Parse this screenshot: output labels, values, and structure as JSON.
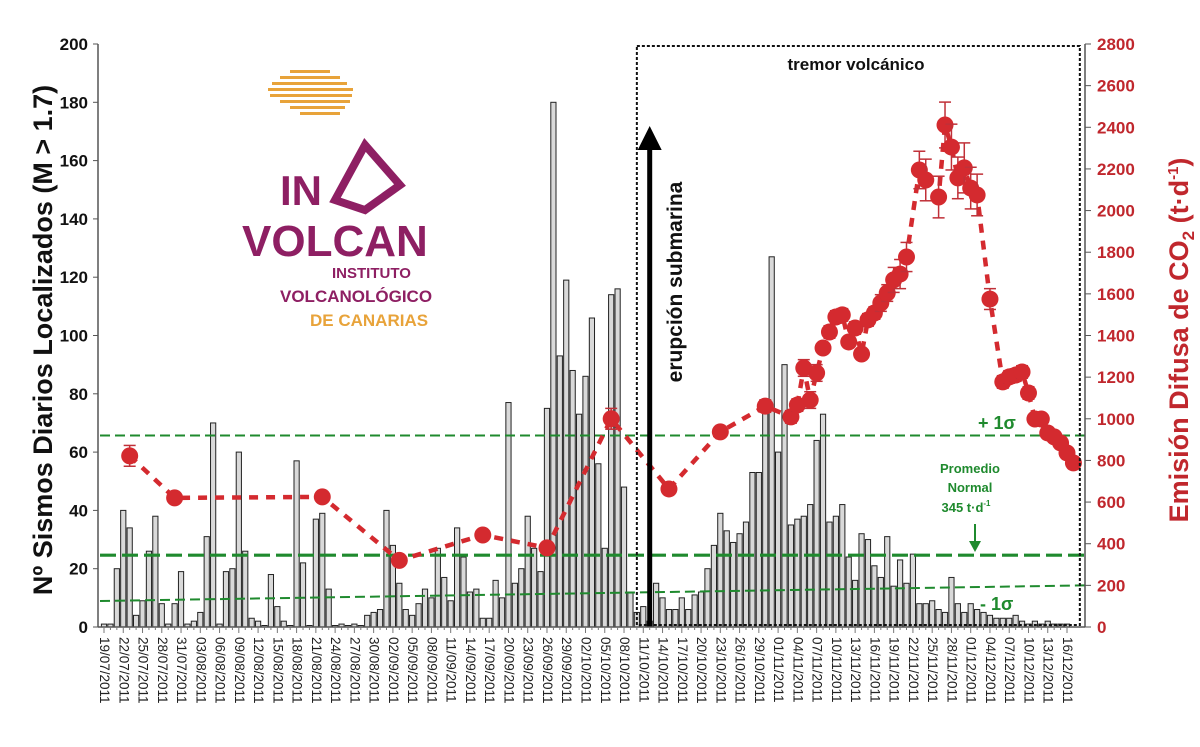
{
  "chart_data": {
    "type": "bar+scatter",
    "title": "",
    "ylabel_left": "Nº Sismos Diarios Localizados (M > 1.7)",
    "ylabel_right": "Emisión Difusa de CO2 (t·d-1)",
    "ylabel_right_parts": {
      "main": "Emisión Difusa de CO",
      "sub": "2",
      "unit": " (t·d",
      "sup": "-1",
      "close": ")"
    },
    "ylim_left": [
      0,
      200
    ],
    "ylim_right": [
      0,
      2800
    ],
    "yticks_left": [
      "0",
      "20",
      "40",
      "60",
      "80",
      "100",
      "120",
      "140",
      "160",
      "180",
      "200"
    ],
    "yticks_right": [
      "0",
      "200",
      "400",
      "600",
      "800",
      "1000",
      "1200",
      "1400",
      "1600",
      "1800",
      "2000",
      "2200",
      "2400",
      "2600",
      "2800"
    ],
    "x_start": "19/07/2011",
    "x_tick_labels": [
      "19/07/2011",
      "22/07/2011",
      "25/07/2011",
      "28/07/2011",
      "31/07/2011",
      "03/08/2011",
      "06/08/2011",
      "09/08/2011",
      "12/08/2011",
      "15/08/2011",
      "18/08/2011",
      "21/08/2011",
      "24/08/2011",
      "27/08/2011",
      "30/08/2011",
      "02/09/2011",
      "05/09/2011",
      "08/09/2011",
      "11/09/2011",
      "14/09/2011",
      "17/09/2011",
      "20/09/2011",
      "23/09/2011",
      "26/09/2011",
      "29/09/2011",
      "02/10/2011",
      "05/10/2011",
      "08/10/2011",
      "11/10/2011",
      "14/10/2011",
      "17/10/2011",
      "20/10/2011",
      "23/10/2011",
      "26/10/2011",
      "29/10/2011",
      "01/11/2011",
      "04/11/2011",
      "07/11/2011",
      "10/11/2011",
      "13/11/2011",
      "16/11/2011",
      "19/11/2011",
      "22/11/2011",
      "25/11/2011",
      "28/11/2011",
      "01/12/2011",
      "04/12/2011",
      "07/12/2011",
      "10/12/2011",
      "13/12/2011",
      "16/12/2011"
    ],
    "x_tick_step_days": 3,
    "daily_earthquakes": [
      1,
      1,
      20,
      40,
      34,
      4,
      9,
      26,
      38,
      8,
      1,
      8,
      19,
      1,
      2,
      5,
      31,
      70,
      1,
      19,
      20,
      60,
      26,
      3,
      2,
      0,
      18,
      7,
      2,
      0,
      57,
      22,
      0,
      37,
      39,
      13,
      0,
      1,
      0,
      1,
      0,
      4,
      5,
      6,
      40,
      28,
      15,
      6,
      4,
      8,
      13,
      10,
      27,
      17,
      9,
      34,
      24,
      12,
      13,
      3,
      3,
      16,
      10,
      77,
      15,
      20,
      38,
      27,
      19,
      75,
      180,
      93,
      119,
      88,
      73,
      86,
      106,
      56,
      27,
      114,
      116,
      48,
      12,
      5,
      7,
      2,
      15,
      10,
      6,
      6,
      10,
      6,
      11,
      12,
      20,
      28,
      39,
      33,
      29,
      32,
      36,
      53,
      53,
      76,
      127,
      60,
      90,
      35,
      37,
      38,
      42,
      64,
      73,
      36,
      38,
      42,
      24,
      16,
      32,
      30,
      21,
      17,
      31,
      14,
      23,
      15,
      25,
      8,
      8,
      9,
      6,
      5,
      17,
      8,
      5,
      8,
      6,
      5,
      4,
      3,
      3,
      3,
      4,
      2,
      1,
      2,
      1,
      2,
      1,
      1,
      1
    ],
    "co2_points_day_value_err": [
      [
        4,
        822,
        50
      ],
      [
        11,
        620,
        20
      ],
      [
        34,
        625,
        20
      ],
      [
        46,
        320,
        20
      ],
      [
        59,
        442,
        20
      ],
      [
        69,
        380,
        20
      ],
      [
        79,
        1000,
        50
      ],
      [
        88,
        663,
        20
      ],
      [
        96,
        937,
        20
      ],
      [
        103,
        1061,
        30
      ],
      [
        107,
        1009,
        30
      ],
      [
        108,
        1066,
        30
      ],
      [
        109,
        1244,
        40
      ],
      [
        110,
        1090,
        40
      ],
      [
        111,
        1220,
        40
      ],
      [
        112,
        1340,
        20
      ],
      [
        113,
        1417,
        30
      ],
      [
        114,
        1489,
        30
      ],
      [
        115,
        1499,
        30
      ],
      [
        116,
        1369,
        20
      ],
      [
        117,
        1436,
        30
      ],
      [
        118,
        1311,
        20
      ],
      [
        119,
        1475,
        30
      ],
      [
        120,
        1508,
        30
      ],
      [
        121,
        1556,
        40
      ],
      [
        122,
        1604,
        40
      ],
      [
        123,
        1667,
        60
      ],
      [
        124,
        1695,
        70
      ],
      [
        125,
        1777,
        70
      ],
      [
        127,
        2195,
        90
      ],
      [
        128,
        2147,
        100
      ],
      [
        130,
        2065,
        100
      ],
      [
        131,
        2411,
        110
      ],
      [
        132,
        2305,
        110
      ],
      [
        133,
        2157,
        100
      ],
      [
        134,
        2205,
        120
      ],
      [
        135,
        2108,
        100
      ],
      [
        136,
        2075,
        100
      ],
      [
        138,
        1575,
        50
      ],
      [
        140,
        1177,
        30
      ],
      [
        141,
        1201,
        30
      ],
      [
        142,
        1210,
        30
      ],
      [
        143,
        1225,
        30
      ],
      [
        144,
        1124,
        30
      ],
      [
        145,
        999,
        20
      ],
      [
        146,
        999,
        20
      ],
      [
        147,
        932,
        20
      ],
      [
        148,
        913,
        20
      ],
      [
        149,
        884,
        20
      ],
      [
        150,
        836,
        20
      ],
      [
        151,
        788,
        20
      ]
    ],
    "reference_lines": {
      "plus_1sigma_co2": 920,
      "mean_co2": 345,
      "minus_1sigma_co2_start": 125,
      "minus_1sigma_co2_end": 200
    },
    "eruption_day": 85,
    "tremor_period_days": [
      83,
      152
    ],
    "grid": false,
    "legend": "none"
  },
  "annotations": {
    "tremor": "tremor volcánico",
    "eruption": "erupción submarina",
    "plus_sigma": "+ 1σ",
    "minus_sigma": "- 1σ",
    "mean_line1": "Promedio",
    "mean_line2": "Normal",
    "mean_value": "345 t·d",
    "mean_sup": "-1"
  },
  "logo": {
    "text_main_1": "IN",
    "text_main_2": "VOLCAN",
    "text_sub_1": "INSTITUTO",
    "text_sub_2": "VOLCANOLÓGICO",
    "text_sub_3": "DE CANARIAS"
  },
  "colors": {
    "co2": "#d42a2f",
    "co2_axis": "#c0272d",
    "ref_lines": "#1f8a2e",
    "bars_fill": "#d9d9d9",
    "bars_stroke": "#222222",
    "logo_purple": "#8e1f63",
    "logo_orange": "#e8a33a"
  }
}
